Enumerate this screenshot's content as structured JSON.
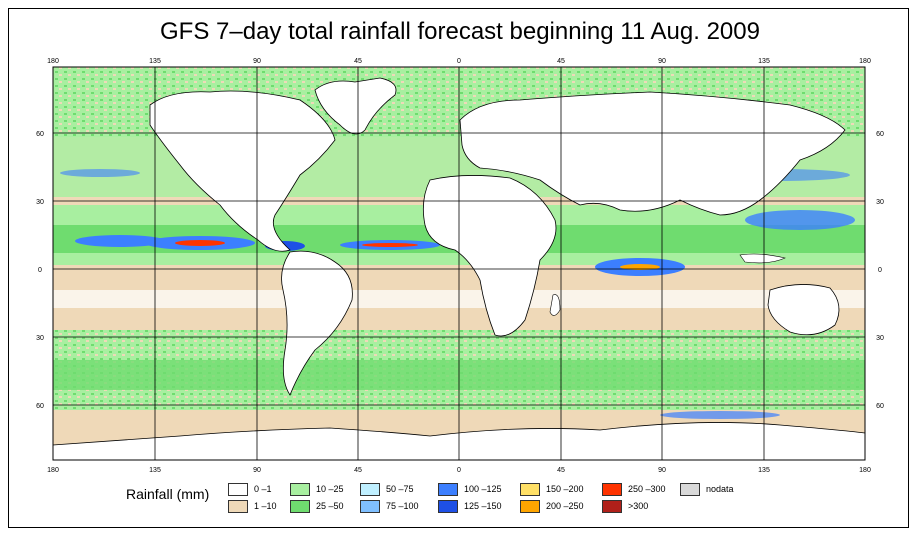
{
  "title": "GFS 7–day total rainfall forecast beginning 11 Aug. 2009",
  "axes": {
    "x_ticks_top": [
      "180",
      "135",
      "90",
      "45",
      "0",
      "45",
      "90",
      "135",
      "180"
    ],
    "x_ticks_bottom": [
      "180",
      "135",
      "90",
      "45",
      "0",
      "45",
      "90",
      "135",
      "180"
    ],
    "y_ticks_left": [
      "60",
      "30",
      "0",
      "30",
      "60"
    ],
    "y_ticks_right": [
      "60",
      "30",
      "0",
      "30",
      "60"
    ]
  },
  "legend": {
    "title": "Rainfall (mm)",
    "items": [
      {
        "label": "0 –1",
        "color": "#ffffff"
      },
      {
        "label": "1 –10",
        "color": "#efd9b8"
      },
      {
        "label": "10 –25",
        "color": "#a8efa0"
      },
      {
        "label": "25 –50",
        "color": "#6fdc6f"
      },
      {
        "label": "50 –75",
        "color": "#bfefff"
      },
      {
        "label": "75 –100",
        "color": "#7fbfff"
      },
      {
        "label": "100 –125",
        "color": "#3c7fff"
      },
      {
        "label": "125 –150",
        "color": "#1e50e6"
      },
      {
        "label": "150 –200",
        "color": "#ffe066"
      },
      {
        "label": "200 –250",
        "color": "#ffa500"
      },
      {
        "label": "250 –300",
        "color": "#ff3300"
      },
      {
        "label": ">300",
        "color": "#b0201a"
      },
      {
        "label": "nodata",
        "color": "#d9d9d9"
      }
    ]
  },
  "colors": {
    "land_outline": "#000000",
    "grid": "#000000",
    "sand": "#efd9b8",
    "green_light": "#a8efa0",
    "green": "#6fdc6f",
    "blue_light": "#bfefff",
    "blue": "#3c7fff",
    "red": "#ff3300"
  }
}
